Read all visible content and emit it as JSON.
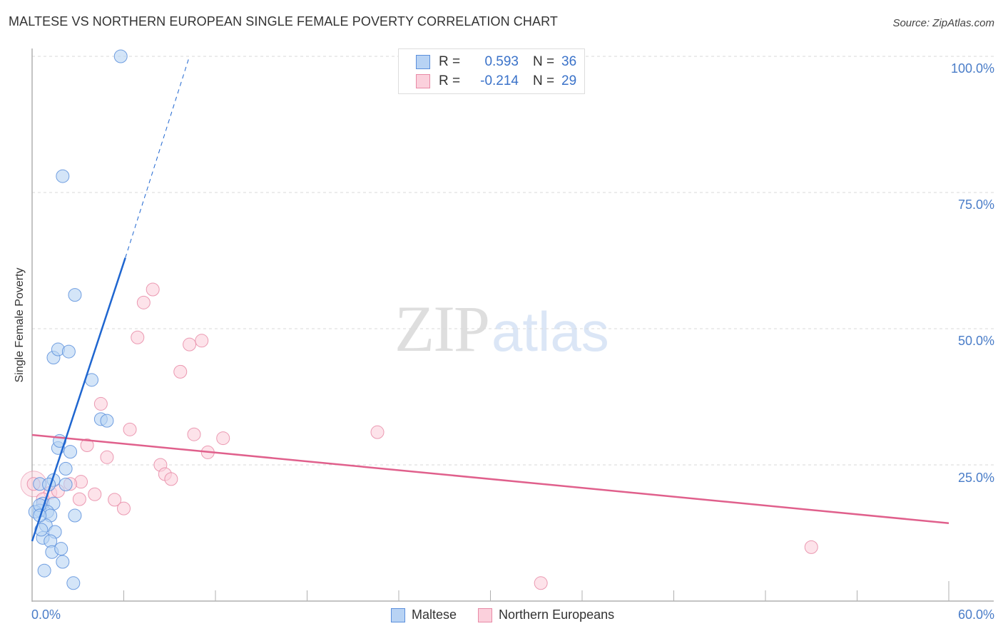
{
  "header": {
    "title": "MALTESE VS NORTHERN EUROPEAN SINGLE FEMALE POVERTY CORRELATION CHART",
    "source": "Source: ZipAtlas.com"
  },
  "watermark": {
    "zip": "ZIP",
    "atlas": "atlas"
  },
  "legend_box": {
    "rows": [
      {
        "r_label": "R =",
        "r_value": "0.593",
        "n_label": "N =",
        "n_value": "36"
      },
      {
        "r_label": "R =",
        "r_value": "-0.214",
        "n_label": "N =",
        "n_value": "29"
      }
    ]
  },
  "bottom_legend": {
    "series": [
      "Maltese",
      "Northern Europeans"
    ]
  },
  "axes": {
    "ylabel": "Single Female Poverty",
    "yticks": [
      "100.0%",
      "75.0%",
      "50.0%",
      "25.0%"
    ],
    "xticks": [
      "0.0%",
      "60.0%"
    ]
  },
  "colors": {
    "maltese_fill": "#b8d3f4",
    "maltese_stroke": "#5b8fdc",
    "maltese_line": "#1f66d0",
    "northern_fill": "#fbd0dc",
    "northern_stroke": "#e88aa6",
    "northern_line": "#e0608c",
    "tick_label": "#4a7dc8"
  },
  "chart_data": {
    "type": "scatter",
    "title": "MALTESE VS NORTHERN EUROPEAN SINGLE FEMALE POVERTY CORRELATION CHART",
    "xlabel": "",
    "ylabel": "Single Female Poverty",
    "xlim": [
      0,
      60
    ],
    "ylim": [
      0,
      100
    ],
    "x_tick_labels": [
      "0.0%",
      "60.0%"
    ],
    "y_tick_labels": [
      "25.0%",
      "50.0%",
      "75.0%",
      "100.0%"
    ],
    "grid": "horizontal dashed at 25/50/75/100",
    "legend_position": "bottom-center; stats box top-center",
    "series": [
      {
        "name": "Maltese",
        "R": 0.593,
        "N": 36,
        "points": [
          [
            5.8,
            100.0
          ],
          [
            2.0,
            78.0
          ],
          [
            2.8,
            56.2
          ],
          [
            1.4,
            44.7
          ],
          [
            1.7,
            46.2
          ],
          [
            2.4,
            45.8
          ],
          [
            3.9,
            40.6
          ],
          [
            4.5,
            33.4
          ],
          [
            4.9,
            33.1
          ],
          [
            1.7,
            28.1
          ],
          [
            2.5,
            27.4
          ],
          [
            1.8,
            29.4
          ],
          [
            2.2,
            24.3
          ],
          [
            1.4,
            22.2
          ],
          [
            0.5,
            21.5
          ],
          [
            0.7,
            17.9
          ],
          [
            1.4,
            17.9
          ],
          [
            0.5,
            16.6
          ],
          [
            0.2,
            16.4
          ],
          [
            1.0,
            16.4
          ],
          [
            1.2,
            15.7
          ],
          [
            2.8,
            15.7
          ],
          [
            0.5,
            17.6
          ],
          [
            0.9,
            13.9
          ],
          [
            1.5,
            12.7
          ],
          [
            0.7,
            11.6
          ],
          [
            1.2,
            11.0
          ],
          [
            1.3,
            9.0
          ],
          [
            1.9,
            9.6
          ],
          [
            2.0,
            7.2
          ],
          [
            0.8,
            5.6
          ],
          [
            2.7,
            3.3
          ],
          [
            0.5,
            15.7
          ],
          [
            2.2,
            21.4
          ],
          [
            1.1,
            21.4
          ],
          [
            0.6,
            13.1
          ]
        ],
        "trendline": {
          "x": [
            0.0,
            6.1
          ],
          "y": [
            11.0,
            63.0
          ],
          "dashed_extension": {
            "x": [
              6.1,
              10.3
            ],
            "y": [
              63.0,
              100.0
            ]
          }
        }
      },
      {
        "name": "Northern Europeans",
        "R": -0.214,
        "N": 29,
        "points": [
          [
            7.9,
            57.2
          ],
          [
            7.3,
            54.8
          ],
          [
            6.9,
            48.4
          ],
          [
            11.1,
            47.8
          ],
          [
            10.3,
            47.1
          ],
          [
            9.7,
            42.1
          ],
          [
            4.5,
            36.2
          ],
          [
            6.4,
            31.5
          ],
          [
            10.6,
            30.6
          ],
          [
            22.6,
            31.0
          ],
          [
            12.5,
            29.9
          ],
          [
            3.6,
            28.6
          ],
          [
            4.9,
            26.4
          ],
          [
            11.5,
            27.3
          ],
          [
            8.4,
            25.0
          ],
          [
            8.7,
            23.3
          ],
          [
            9.1,
            22.4
          ],
          [
            3.2,
            21.9
          ],
          [
            2.5,
            21.5
          ],
          [
            1.2,
            19.9
          ],
          [
            1.7,
            20.2
          ],
          [
            4.1,
            19.6
          ],
          [
            3.1,
            18.7
          ],
          [
            5.4,
            18.6
          ],
          [
            6.0,
            17.0
          ],
          [
            51.0,
            9.9
          ],
          [
            33.3,
            3.3
          ],
          [
            0.1,
            21.5
          ],
          [
            0.7,
            18.7
          ]
        ],
        "trendline": {
          "x": [
            0.0,
            60.0
          ],
          "y": [
            30.5,
            14.3
          ]
        }
      }
    ]
  }
}
